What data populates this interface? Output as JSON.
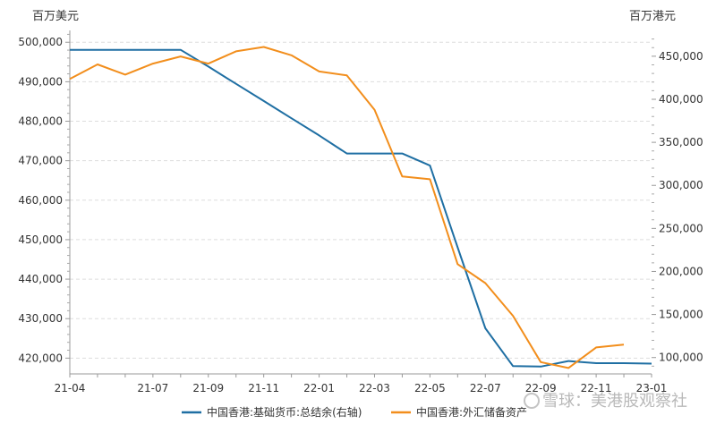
{
  "left_unit": "百万美元",
  "right_unit": "百万港元",
  "watermark": "雪球：美港股观察社",
  "chart_data": {
    "type": "line",
    "x_ticks": [
      "21-04",
      "21-07",
      "21-09",
      "21-11",
      "22-01",
      "22-03",
      "22-05",
      "22-07",
      "22-09",
      "22-11",
      "23-01"
    ],
    "x_tick_months": [
      0,
      3,
      5,
      7,
      9,
      11,
      13,
      15,
      17,
      19,
      21
    ],
    "left_axis": {
      "unit": "百万美元",
      "min": 416000,
      "max": 503000,
      "ticks": [
        420000,
        430000,
        440000,
        450000,
        460000,
        470000,
        480000,
        490000,
        500000
      ],
      "tick_labels": [
        "420,000",
        "430,000",
        "440,000",
        "450,000",
        "460,000",
        "470,000",
        "480,000",
        "490,000",
        "500,000"
      ]
    },
    "right_axis": {
      "unit": "百万港元",
      "min": 81000,
      "max": 480000,
      "ticks": [
        100000,
        150000,
        200000,
        250000,
        300000,
        350000,
        400000,
        450000
      ],
      "tick_labels": [
        "100,000",
        "150,000",
        "200,000",
        "250,000",
        "300,000",
        "350,000",
        "400,000",
        "450,000"
      ]
    },
    "grid": "horizontal-dashed",
    "legend_position": "bottom",
    "series": [
      {
        "name": "中国香港:基础货币:总结余(右轴)",
        "axis": "right",
        "color": "#1f6fa3",
        "x_months": [
          0,
          4,
          5,
          6,
          7,
          8,
          9,
          10,
          11,
          12,
          13,
          14,
          15,
          16,
          17,
          18,
          19,
          20,
          21
        ],
        "values": [
          457500,
          457500,
          438000,
          418000,
          398000,
          378000,
          358000,
          337000,
          337000,
          337000,
          323000,
          228000,
          134000,
          90000,
          89500,
          96000,
          93500,
          93500,
          93000
        ]
      },
      {
        "name": "中国香港:外汇储备资产",
        "axis": "left",
        "color": "#f28e1c",
        "x_months": [
          0,
          1,
          2,
          3,
          4,
          5,
          6,
          7,
          8,
          9,
          10,
          11,
          12,
          13,
          14,
          15,
          16,
          17,
          18,
          19,
          20
        ],
        "values": [
          490700,
          494400,
          491800,
          494600,
          496400,
          494600,
          497700,
          498800,
          496700,
          492600,
          491600,
          482900,
          466000,
          465300,
          443800,
          439000,
          430700,
          419000,
          417500,
          422700,
          423400
        ]
      }
    ]
  }
}
